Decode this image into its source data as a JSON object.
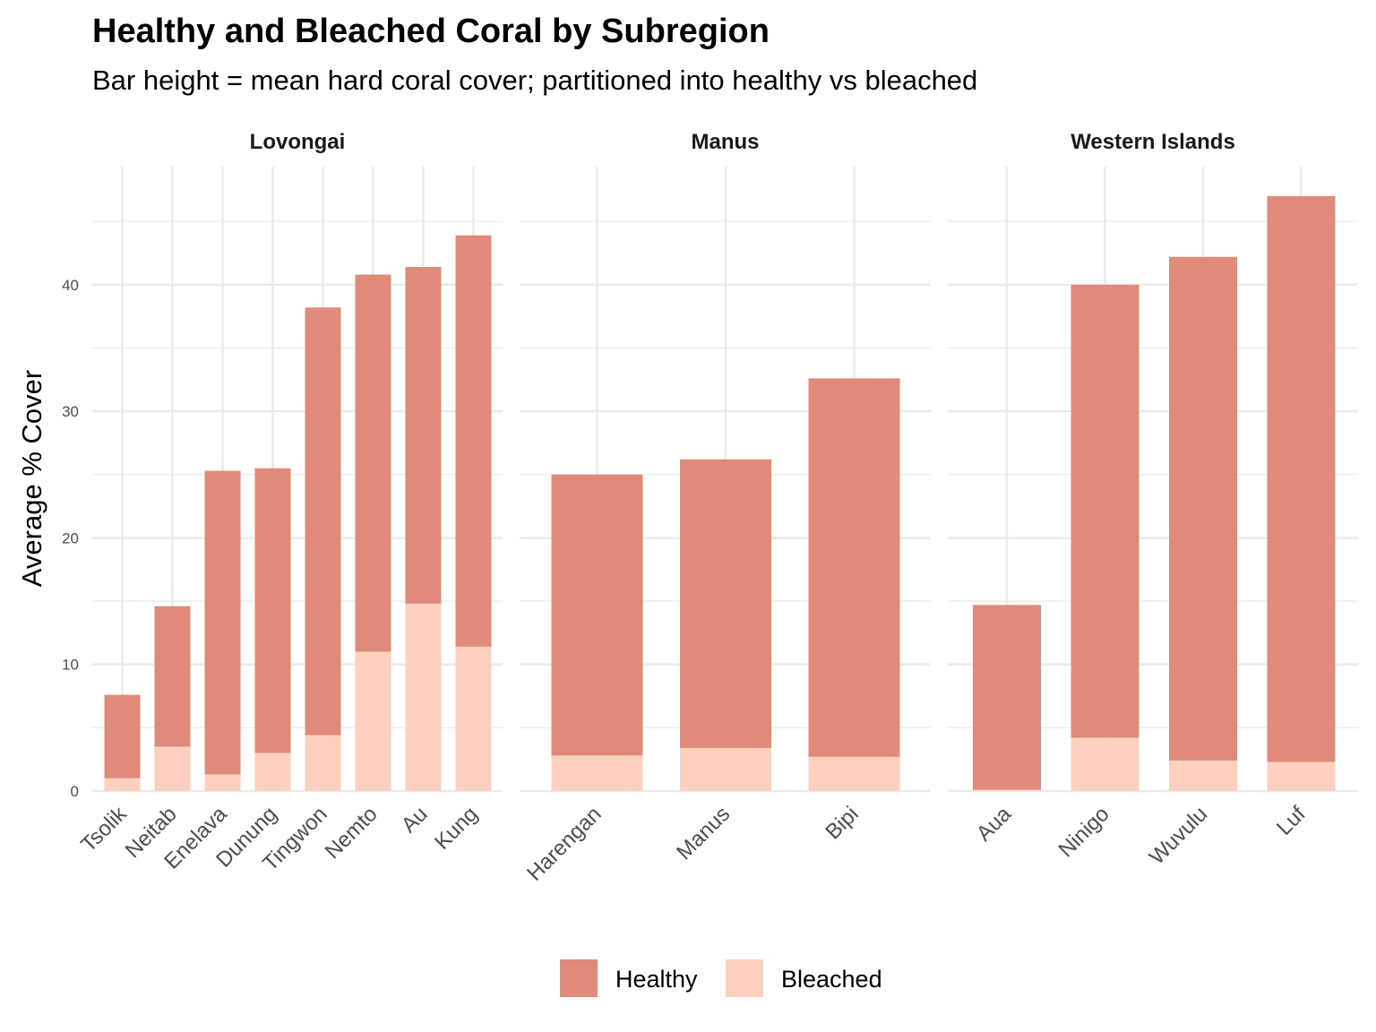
{
  "chart_data": {
    "type": "bar",
    "stacked": true,
    "title": "Healthy and Bleached Coral by Subregion",
    "subtitle": "Bar height = mean hard coral cover; partitioned into healthy vs bleached",
    "ylabel": "Average % Cover",
    "xlabel": "",
    "ylim": [
      0,
      50
    ],
    "yticks": [
      0,
      10,
      20,
      30,
      40
    ],
    "grid": true,
    "legend_position": "bottom",
    "legend": [
      {
        "name": "Healthy",
        "color": "#E08B7A"
      },
      {
        "name": "Bleached",
        "color": "#FDD0C0"
      }
    ],
    "panels": [
      {
        "title": "Lovongai",
        "categories": [
          "Tsolik",
          "Neitab",
          "Enelava",
          "Dunung",
          "Tingwon",
          "Nemto",
          "Au",
          "Kung"
        ],
        "bleached": [
          1.0,
          3.5,
          1.3,
          3.0,
          4.4,
          11.0,
          14.8,
          11.4
        ],
        "total": [
          7.6,
          14.6,
          25.3,
          25.5,
          38.2,
          40.8,
          41.4,
          43.9
        ]
      },
      {
        "title": "Manus",
        "categories": [
          "Harengan",
          "Manus",
          "Bipi"
        ],
        "bleached": [
          2.8,
          3.4,
          2.7
        ],
        "total": [
          25.0,
          26.2,
          32.6
        ]
      },
      {
        "title": "Western Islands",
        "categories": [
          "Aua",
          "Ninigo",
          "Wuvulu",
          "Luf"
        ],
        "bleached": [
          0.1,
          4.2,
          2.4,
          2.3
        ],
        "total": [
          14.7,
          40.0,
          42.2,
          47.0
        ]
      }
    ]
  }
}
